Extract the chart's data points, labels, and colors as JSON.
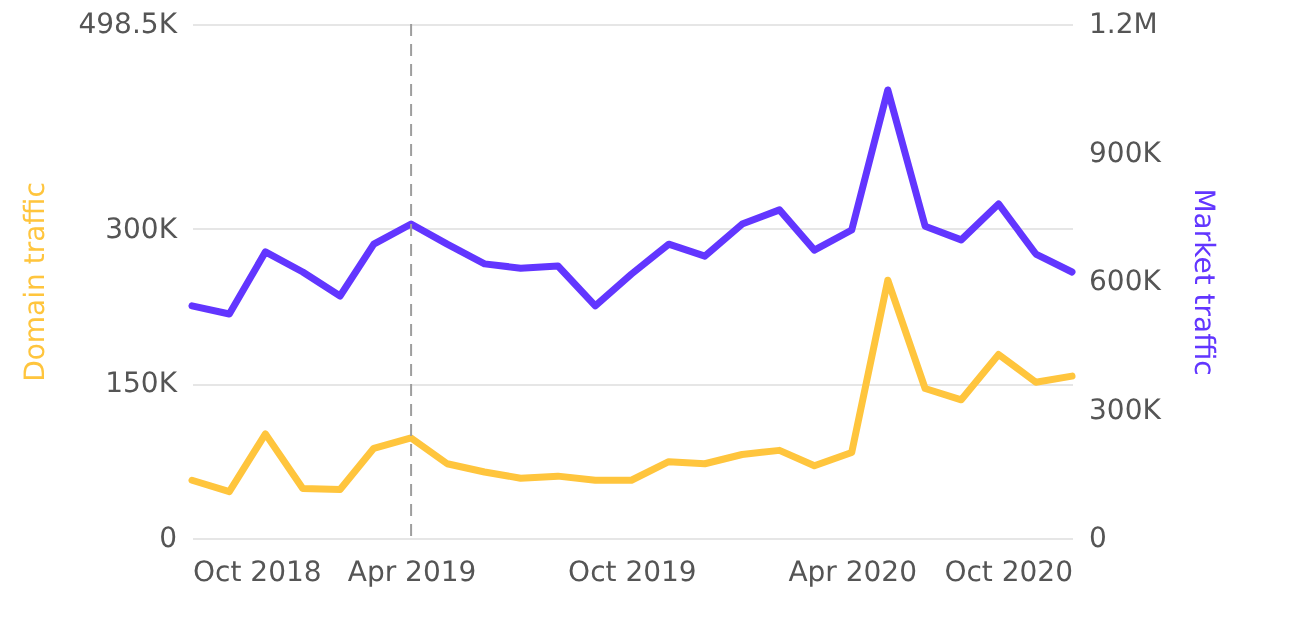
{
  "chart_data": {
    "type": "line",
    "x": [
      "2018-10",
      "2018-11",
      "2018-12",
      "2019-01",
      "2019-02",
      "2019-03",
      "2019-04",
      "2019-05",
      "2019-06",
      "2019-07",
      "2019-08",
      "2019-09",
      "2019-10",
      "2019-11",
      "2019-12",
      "2020-01",
      "2020-02",
      "2020-03",
      "2020-04",
      "2020-05",
      "2020-06",
      "2020-07",
      "2020-08",
      "2020-09",
      "2020-10"
    ],
    "series": [
      {
        "color": "#ffc53d",
        "values": [
          56000,
          45000,
          101000,
          48000,
          47000,
          87000,
          97000,
          72000,
          64000,
          58000,
          60000,
          56000,
          56000,
          74000,
          72000,
          81000,
          85000,
          70000,
          83000,
          250000,
          145000,
          134000,
          178000,
          151000,
          157000
        ]
      },
      {
        "color": "#6236ff",
        "axis": "y2",
        "values": [
          542000,
          523000,
          668000,
          621000,
          565000,
          686000,
          733000,
          686000,
          640000,
          630000,
          635000,
          542000,
          616000,
          686000,
          658000,
          733000,
          766000,
          672000,
          719000,
          1046000,
          728000,
          696000,
          780000,
          663000,
          621000
        ]
      }
    ],
    "xlim": [
      "2018-10",
      "2020-10"
    ],
    "xticks": [
      {
        "value": "2018-10",
        "label": "Oct 2018"
      },
      {
        "value": "2019-04",
        "label": "Apr 2019"
      },
      {
        "value": "2019-10",
        "label": "Oct 2019"
      },
      {
        "value": "2020-04",
        "label": "Apr 2020"
      },
      {
        "value": "2020-10",
        "label": "Oct 2020"
      }
    ],
    "ylim": [
      0,
      498500
    ],
    "yticks": [
      {
        "value": 0,
        "label": "0"
      },
      {
        "value": 150000,
        "label": "150K"
      },
      {
        "value": 300000,
        "label": "300K"
      },
      {
        "value": 498500,
        "label": "498.5K"
      }
    ],
    "y2lim": [
      0,
      1200000
    ],
    "y2ticks": [
      {
        "value": 0,
        "label": "0"
      },
      {
        "value": 300000,
        "label": "300K"
      },
      {
        "value": 600000,
        "label": "600K"
      },
      {
        "value": 900000,
        "label": "900K"
      },
      {
        "value": 1200000,
        "label": "1.2M"
      }
    ],
    "ylabel": "Domain traffic",
    "y2label": "Market traffic",
    "ref_lines": [
      {
        "axis": "x",
        "value": "2019-04",
        "color": "#9e9e9e",
        "line_style": "dashed"
      }
    ],
    "grid": "y",
    "legend": false,
    "marker": "none",
    "line_style": "solid"
  }
}
